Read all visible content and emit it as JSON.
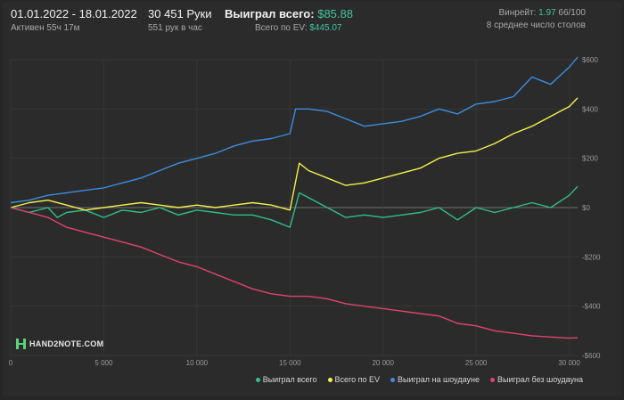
{
  "header": {
    "date_range": "01.01.2022 - 18.01.2022",
    "active": "Активен 55ч 17м",
    "hands": "30 451 Руки",
    "hands_per_hour": "551 рук в час",
    "won_total_label": "Выиграл всего:",
    "won_total_value": "$85.88",
    "ev_label": "Всего по EV:",
    "ev_value": "$445.07",
    "winrate_label": "Винрейт:",
    "winrate_value": "1.97",
    "winrate_hands": "66/100",
    "tables": "8 среднее число столов"
  },
  "logo": {
    "text": "HAND2NOTE.COM"
  },
  "legend": [
    {
      "label": "Выиграл всего",
      "color": "#2fbf87"
    },
    {
      "label": "Всего по EV",
      "color": "#f5f04a"
    },
    {
      "label": "Выиграл на шоудауне",
      "color": "#3b8de0"
    },
    {
      "label": "Выиграл без шоудауна",
      "color": "#e0436e"
    }
  ],
  "chart_data": {
    "type": "line",
    "x_ticks": [
      "0",
      "5 000",
      "10 000",
      "15 000",
      "20 000",
      "25 000",
      "30 000"
    ],
    "y_ticks": [
      "$600",
      "$400",
      "$200",
      "$0",
      "-$200",
      "-$400",
      "-$600"
    ],
    "xlim": [
      0,
      30451
    ],
    "ylim": [
      -600,
      600
    ],
    "grid": true,
    "series": [
      {
        "name": "Выиграл всего",
        "color": "#2fbf87",
        "x": [
          0,
          1000,
          2000,
          2500,
          3000,
          4000,
          5000,
          6000,
          7000,
          8000,
          9000,
          10000,
          11000,
          12000,
          13000,
          14000,
          15000,
          15500,
          16000,
          17000,
          18000,
          19000,
          20000,
          21000,
          22000,
          23000,
          24000,
          25000,
          26000,
          27000,
          28000,
          29000,
          30000,
          30451
        ],
        "y": [
          0,
          -20,
          0,
          -40,
          -20,
          -10,
          -40,
          -10,
          -20,
          0,
          -30,
          -10,
          -20,
          -30,
          -30,
          -50,
          -80,
          60,
          40,
          0,
          -40,
          -30,
          -40,
          -30,
          -20,
          0,
          -50,
          0,
          -20,
          0,
          20,
          0,
          50,
          85.88
        ]
      },
      {
        "name": "Всего по EV",
        "color": "#f5f04a",
        "x": [
          0,
          1000,
          2000,
          3000,
          4000,
          5000,
          6000,
          7000,
          8000,
          9000,
          10000,
          11000,
          12000,
          13000,
          14000,
          15000,
          15500,
          16000,
          17000,
          18000,
          19000,
          20000,
          21000,
          22000,
          23000,
          24000,
          25000,
          26000,
          27000,
          28000,
          29000,
          30000,
          30451
        ],
        "y": [
          0,
          20,
          30,
          10,
          -10,
          0,
          10,
          20,
          10,
          0,
          10,
          0,
          10,
          20,
          10,
          -10,
          180,
          150,
          120,
          90,
          100,
          120,
          140,
          160,
          200,
          220,
          230,
          260,
          300,
          330,
          370,
          410,
          445.07
        ]
      },
      {
        "name": "Выиграл на шоудауне",
        "color": "#3b8de0",
        "x": [
          0,
          1000,
          2000,
          3000,
          4000,
          5000,
          6000,
          7000,
          8000,
          9000,
          10000,
          11000,
          12000,
          13000,
          14000,
          15000,
          15300,
          16000,
          17000,
          18000,
          19000,
          20000,
          21000,
          22000,
          23000,
          24000,
          25000,
          26000,
          27000,
          28000,
          29000,
          30000,
          30451
        ],
        "y": [
          20,
          30,
          50,
          60,
          70,
          80,
          100,
          120,
          150,
          180,
          200,
          220,
          250,
          270,
          280,
          300,
          400,
          400,
          390,
          360,
          330,
          340,
          350,
          370,
          400,
          380,
          420,
          430,
          450,
          530,
          500,
          570,
          610
        ]
      },
      {
        "name": "Выиграл без шоудауна",
        "color": "#e0436e",
        "x": [
          0,
          1000,
          2000,
          3000,
          4000,
          5000,
          6000,
          7000,
          8000,
          9000,
          10000,
          11000,
          12000,
          13000,
          14000,
          15000,
          16000,
          17000,
          18000,
          19000,
          20000,
          21000,
          22000,
          23000,
          24000,
          25000,
          26000,
          27000,
          28000,
          29000,
          30000,
          30451
        ],
        "y": [
          0,
          -20,
          -40,
          -80,
          -100,
          -120,
          -140,
          -160,
          -190,
          -220,
          -240,
          -270,
          -300,
          -330,
          -350,
          -360,
          -360,
          -370,
          -390,
          -400,
          -410,
          -420,
          -430,
          -440,
          -470,
          -480,
          -500,
          -510,
          -520,
          -525,
          -530,
          -528
        ]
      }
    ]
  }
}
